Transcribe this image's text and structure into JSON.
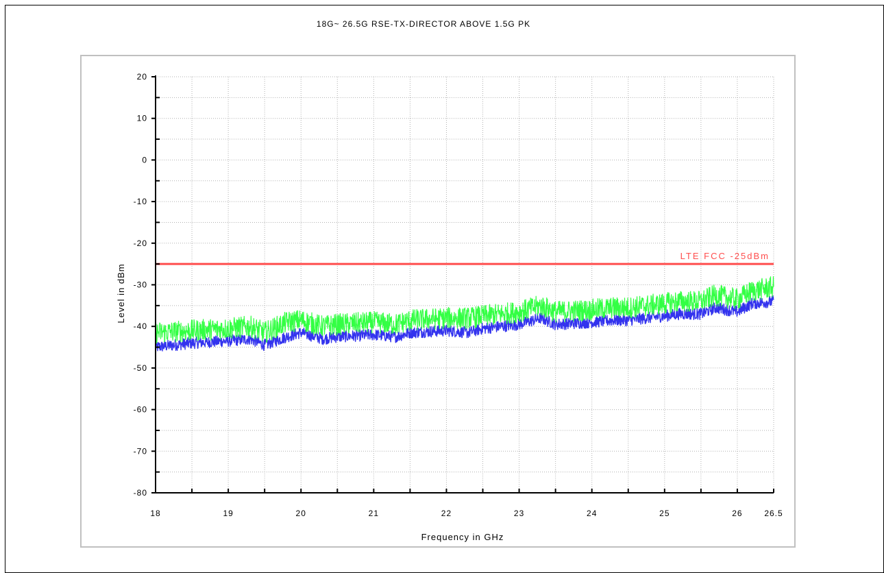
{
  "chart_data": {
    "type": "line",
    "title": "18G~ 26.5G RSE-TX-DIRECTOR ABOVE 1.5G PK",
    "xlabel": "Frequency in GHz",
    "ylabel": "Level in dBm",
    "xlim": [
      18,
      26.5
    ],
    "ylim": [
      -80,
      20
    ],
    "x_ticks": [
      "18",
      "19",
      "20",
      "21",
      "22",
      "23",
      "24",
      "25",
      "26",
      "26.5"
    ],
    "y_ticks": [
      "20",
      "10",
      "0",
      "-10",
      "-20",
      "-30",
      "-40",
      "-50",
      "-60",
      "-70",
      "-80"
    ],
    "grid": true,
    "limit_line": {
      "name": "LTE FCC -25dBm",
      "value": -25,
      "color": "#ff4d4d"
    },
    "series": [
      {
        "color": "#3333ee",
        "x": [
          18.0,
          18.5,
          19.0,
          19.3,
          19.5,
          19.8,
          20.0,
          20.3,
          20.5,
          21.0,
          21.3,
          21.5,
          22.0,
          22.3,
          22.5,
          23.0,
          23.3,
          23.5,
          24.0,
          24.3,
          24.5,
          25.0,
          25.2,
          25.5,
          25.7,
          26.0,
          26.2,
          26.5
        ],
        "values": [
          -45.0,
          -44.0,
          -43.5,
          -43.0,
          -44.5,
          -42.5,
          -41.5,
          -43.0,
          -42.5,
          -42.0,
          -42.5,
          -41.5,
          -41.0,
          -41.5,
          -40.5,
          -39.5,
          -38.0,
          -39.5,
          -39.0,
          -38.5,
          -38.5,
          -37.5,
          -37.0,
          -37.0,
          -35.5,
          -36.5,
          -34.5,
          -34.0
        ]
      },
      {
        "color": "#33ff44",
        "x": [
          18.0,
          18.5,
          19.0,
          19.3,
          19.5,
          19.8,
          20.0,
          20.3,
          20.5,
          21.0,
          21.3,
          21.5,
          22.0,
          22.3,
          22.5,
          23.0,
          23.3,
          23.5,
          24.0,
          24.3,
          24.5,
          25.0,
          25.2,
          25.5,
          25.7,
          26.0,
          26.2,
          26.5
        ],
        "values": [
          -41.5,
          -41.0,
          -40.5,
          -40.0,
          -41.5,
          -39.0,
          -38.5,
          -40.0,
          -39.5,
          -39.0,
          -39.5,
          -38.5,
          -38.0,
          -38.0,
          -37.5,
          -36.5,
          -35.0,
          -36.5,
          -36.0,
          -35.5,
          -35.5,
          -34.5,
          -34.0,
          -34.0,
          -32.5,
          -33.5,
          -31.5,
          -30.5
        ]
      }
    ]
  }
}
